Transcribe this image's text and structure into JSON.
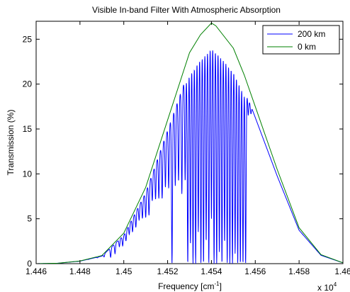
{
  "chart_data": {
    "type": "line",
    "title": "Visible In-band Filter With Atmospheric Absorption",
    "xlabel": "Frequency [cm",
    "xlabel_sup": "-1",
    "xlabel_end": "]",
    "ylabel": "Transmission (%)",
    "x_multiplier_base": "x 10",
    "x_multiplier_exp": "4",
    "xlim": [
      14460,
      14600
    ],
    "ylim": [
      0,
      27
    ],
    "xticks": [
      14460,
      14480,
      14500,
      14520,
      14540,
      14560,
      14580,
      14600
    ],
    "xtick_labels": [
      "1.446",
      "1.448",
      "1.45",
      "1.452",
      "1.454",
      "1.456",
      "1.458",
      "1.46"
    ],
    "yticks": [
      0,
      5,
      10,
      15,
      20,
      25
    ],
    "ytick_labels": [
      "0",
      "5",
      "10",
      "15",
      "20",
      "25"
    ],
    "grid": false,
    "legend_position": "top-right",
    "absorption_lines": [
      14468,
      14473,
      14479,
      14484,
      14488,
      14491,
      14494,
      14496,
      14498,
      14499.5,
      14501,
      14502.5,
      14504,
      14505.5,
      14507,
      14508.5,
      14510,
      14511.5,
      14513,
      14514.5,
      14516,
      14517.5,
      14519,
      14520.5,
      14522,
      14523.5,
      14525,
      14526.5,
      14528,
      14529.2,
      14530.4,
      14531.6,
      14532.8,
      14534,
      14535.2,
      14536.4,
      14537.6,
      14538.8,
      14540,
      14541.2,
      14542.4,
      14543.6,
      14544.8,
      14546,
      14547.2,
      14548.4,
      14549.6,
      14550.8,
      14552,
      14553.2,
      14554.4,
      14555.6,
      14556.8,
      14558
    ],
    "absorption_depths": [
      0.02,
      0.03,
      0.05,
      0.05,
      0.1,
      0.3,
      0.6,
      0.5,
      0.3,
      0.35,
      0.3,
      0.25,
      0.3,
      0.3,
      0.25,
      0.3,
      0.35,
      0.4,
      0.3,
      0.35,
      0.4,
      0.45,
      0.4,
      0.45,
      1.0,
      0.5,
      0.5,
      0.6,
      0.55,
      1.0,
      0.9,
      1.0,
      1.0,
      0.85,
      1.0,
      1.0,
      0.9,
      1.0,
      0.8,
      1.0,
      1.0,
      0.95,
      1.0,
      0.9,
      1.0,
      1.0,
      1.0,
      0.95,
      1.0,
      1.0,
      1.0,
      1.0,
      0.1,
      0.05
    ],
    "series": [
      {
        "name": "200 km",
        "color": "#0000ff",
        "kind": "absorbed"
      },
      {
        "name": "0 km",
        "color": "#008000",
        "x": [
          14460,
          14470,
          14480,
          14490,
          14500,
          14510,
          14520,
          14530,
          14535,
          14540,
          14542,
          14550,
          14555,
          14560,
          14570,
          14580,
          14590,
          14600
        ],
        "y": [
          0.0,
          0.05,
          0.3,
          0.9,
          3.4,
          8.5,
          16.0,
          23.5,
          25.5,
          26.8,
          26.5,
          24.0,
          21.0,
          17.5,
          10.5,
          4.0,
          1.0,
          0.1
        ]
      }
    ]
  }
}
